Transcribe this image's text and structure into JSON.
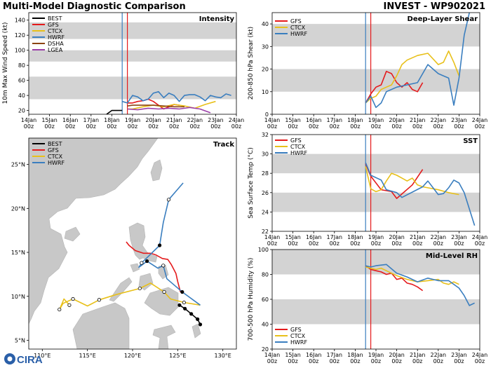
{
  "header": {
    "title_left": "Multi-Model Diagnostic Comparison",
    "title_right": "INVEST - WP902021",
    "logo_text": "CIRA"
  },
  "colors": {
    "BEST": "#000000",
    "GFS": "#e41a1c",
    "CTCX": "#e8c01a",
    "HWRF": "#3a7ebf",
    "DSHA": "#8b4513",
    "LGEA": "#9b3fa8",
    "band": "#d3d3d3",
    "land": "#c8c8c8",
    "init_line_a": "#3a7ebf",
    "init_line_b": "#e41a1c"
  },
  "time_ticks": [
    "14Jan\n00z",
    "15Jan\n00z",
    "16Jan\n00z",
    "17Jan\n00z",
    "18Jan\n00z",
    "19Jan\n00z",
    "20Jan\n00z",
    "21Jan\n00z",
    "22Jan\n00z",
    "23Jan\n00z",
    "24Jan\n00z"
  ],
  "chart_data": [
    {
      "id": "intensity",
      "type": "line",
      "title": "Intensity",
      "ylabel": "10m Max Wind Speed (kt)",
      "xlim": [
        0,
        10
      ],
      "ylim": [
        15,
        150
      ],
      "yticks": [
        20,
        40,
        60,
        80,
        100,
        120,
        140
      ],
      "bands": [
        [
          35,
          65
        ],
        [
          85,
          100
        ],
        [
          115,
          137
        ]
      ],
      "init_lines": [
        4.5,
        4.75
      ],
      "legend": [
        "BEST",
        "GFS",
        "CTCX",
        "HWRF",
        "DSHA",
        "LGEA"
      ],
      "series": [
        {
          "name": "BEST",
          "x": [
            3.75,
            4.0,
            4.25,
            4.5
          ],
          "y": [
            15,
            20,
            20,
            20
          ]
        },
        {
          "name": "GFS",
          "x": [
            4.75,
            5.0,
            5.25,
            5.5,
            5.75,
            6.0,
            6.25,
            6.5,
            6.75,
            7.0,
            7.25
          ],
          "y": [
            30,
            30,
            32,
            33,
            35,
            32,
            27,
            22,
            25,
            28,
            27
          ]
        },
        {
          "name": "CTCX",
          "x": [
            4.75,
            5.0,
            5.5,
            6.0,
            6.5,
            7.0,
            7.5,
            8.0,
            8.5,
            9.0
          ],
          "y": [
            22,
            22,
            25,
            27,
            25,
            28,
            26,
            23,
            28,
            32
          ]
        },
        {
          "name": "HWRF",
          "x": [
            4.5,
            4.75,
            5.0,
            5.25,
            5.5,
            5.75,
            6.0,
            6.25,
            6.5,
            6.75,
            7.0,
            7.25,
            7.5,
            7.75,
            8.0,
            8.25,
            8.5,
            8.75,
            9.0,
            9.25,
            9.5,
            9.75
          ],
          "y": [
            32,
            30,
            40,
            38,
            33,
            35,
            43,
            45,
            37,
            43,
            40,
            32,
            40,
            41,
            41,
            38,
            33,
            40,
            38,
            37,
            42,
            40
          ]
        },
        {
          "name": "DSHA",
          "x": [
            4.75,
            5.0,
            5.5,
            6.0,
            6.5,
            7.0,
            7.5
          ],
          "y": [
            26,
            27,
            27,
            27,
            26,
            25,
            25
          ]
        },
        {
          "name": "LGEA",
          "x": [
            4.75,
            5.25,
            5.75,
            6.25,
            6.75,
            7.25,
            7.75,
            8.25,
            8.75
          ],
          "y": [
            22,
            21,
            23,
            22,
            23,
            22,
            24,
            22,
            17
          ]
        }
      ]
    },
    {
      "id": "shear",
      "type": "line",
      "title": "Deep-Layer Shear",
      "ylabel": "200-850 hPa Shear (kt)",
      "xlim": [
        0,
        10
      ],
      "ylim": [
        0,
        45
      ],
      "yticks": [
        0,
        10,
        20,
        30,
        40
      ],
      "bands": [
        [
          10,
          20
        ],
        [
          30,
          40
        ]
      ],
      "init_lines": [
        4.5,
        4.75
      ],
      "legend": [
        "GFS",
        "CTCX",
        "HWRF"
      ],
      "series": [
        {
          "name": "GFS",
          "x": [
            4.5,
            4.75,
            5.0,
            5.25,
            5.5,
            5.75,
            6.0,
            6.25,
            6.5,
            6.75,
            7.0,
            7.25
          ],
          "y": [
            5,
            9,
            12,
            13,
            19,
            18,
            14,
            12,
            14,
            11,
            10,
            14
          ]
        },
        {
          "name": "CTCX",
          "x": [
            4.5,
            4.75,
            5.0,
            5.25,
            5.5,
            5.75,
            6.0,
            6.25,
            6.5,
            7.0,
            7.5,
            8.0,
            8.25,
            8.5,
            8.75,
            9.0
          ],
          "y": [
            5,
            7,
            8,
            11,
            12,
            13,
            17,
            22,
            24,
            26,
            27,
            22,
            23,
            28,
            23,
            17
          ]
        },
        {
          "name": "HWRF",
          "x": [
            4.5,
            4.75,
            5.0,
            5.25,
            5.5,
            6.0,
            6.5,
            7.0,
            7.5,
            8.0,
            8.5,
            8.75,
            9.0,
            9.25,
            9.5
          ],
          "y": [
            5,
            8,
            3,
            5,
            10,
            12,
            13,
            14,
            22,
            18,
            16,
            4,
            16,
            35,
            45
          ]
        }
      ]
    },
    {
      "id": "sst",
      "type": "line",
      "title": "SST",
      "ylabel": "Sea Surface Temp (°C)",
      "xlim": [
        0,
        10
      ],
      "ylim": [
        22,
        32
      ],
      "yticks": [
        22,
        24,
        26,
        28,
        30,
        32
      ],
      "bands": [
        [
          24,
          26
        ],
        [
          28,
          30
        ]
      ],
      "init_lines": [
        4.5,
        4.75
      ],
      "legend": [
        "GFS",
        "CTCX",
        "HWRF"
      ],
      "series": [
        {
          "name": "GFS",
          "x": [
            4.5,
            4.75,
            5.25,
            5.5,
            5.75,
            6.0,
            6.75,
            7.0,
            7.25
          ],
          "y": [
            29,
            27.7,
            26.3,
            26.2,
            26.1,
            25.4,
            26.8,
            27.6,
            28.4
          ]
        },
        {
          "name": "CTCX",
          "x": [
            4.5,
            4.75,
            5.0,
            5.25,
            5.5,
            5.75,
            6.0,
            6.25,
            6.5,
            6.75,
            7.0,
            7.25,
            7.5,
            8.0,
            8.5,
            9.0
          ],
          "y": [
            28.7,
            26.4,
            26.1,
            26.3,
            27.2,
            28.0,
            27.8,
            27.5,
            27.2,
            27.5,
            26.8,
            26.6,
            26.5,
            26.3,
            26.0,
            25.8
          ]
        },
        {
          "name": "HWRF",
          "x": [
            4.5,
            4.75,
            5.25,
            5.5,
            6.0,
            6.25,
            7.25,
            7.5,
            7.75,
            8.0,
            8.25,
            8.5,
            8.75,
            9.0,
            9.25,
            9.5,
            9.75
          ],
          "y": [
            29.1,
            27.8,
            27.3,
            26.3,
            26.0,
            25.5,
            26.6,
            27.2,
            26.5,
            25.8,
            25.9,
            26.5,
            27.3,
            27.0,
            26.0,
            24.3,
            22.6
          ]
        }
      ]
    },
    {
      "id": "rh",
      "type": "line",
      "title": "Mid-Level RH",
      "ylabel": "700-500 hPa Humidity (%)",
      "xlim": [
        0,
        10
      ],
      "ylim": [
        20,
        100
      ],
      "yticks": [
        20,
        40,
        60,
        80,
        100
      ],
      "bands": [
        [
          40,
          60
        ],
        [
          80,
          100
        ]
      ],
      "init_lines": [
        4.5,
        4.75
      ],
      "legend": [
        "GFS",
        "CTCX",
        "HWRF"
      ],
      "series": [
        {
          "name": "GFS",
          "x": [
            4.5,
            4.75,
            5.0,
            5.25,
            5.5,
            5.75,
            6.0,
            6.25,
            6.5,
            6.75,
            7.0,
            7.25
          ],
          "y": [
            87,
            84,
            83,
            82,
            80,
            81,
            76,
            77,
            73,
            72,
            70,
            67
          ]
        },
        {
          "name": "CTCX",
          "x": [
            4.5,
            4.75,
            5.0,
            5.25,
            5.5,
            6.0,
            6.5,
            7.0,
            7.5,
            8.0,
            8.25,
            8.5,
            8.75,
            9.0
          ],
          "y": [
            86,
            85,
            84,
            85,
            83,
            79,
            76,
            74,
            75,
            76,
            73,
            72,
            74,
            72
          ]
        },
        {
          "name": "HWRF",
          "x": [
            4.5,
            4.75,
            5.0,
            5.5,
            6.0,
            6.5,
            7.0,
            7.5,
            8.0,
            8.5,
            9.0,
            9.25,
            9.5,
            9.75
          ],
          "y": [
            87,
            86,
            87,
            88,
            81,
            78,
            74,
            77,
            75,
            75,
            69,
            63,
            55,
            57
          ]
        }
      ]
    },
    {
      "id": "track",
      "type": "scatter",
      "title": "Track",
      "xlim": [
        108.5,
        131.5
      ],
      "ylim": [
        4,
        28
      ],
      "xticks": [
        110,
        115,
        120,
        125,
        130
      ],
      "xtick_labels": [
        "110°E",
        "115°E",
        "120°E",
        "125°E",
        "130°E"
      ],
      "yticks": [
        5,
        10,
        15,
        20,
        25
      ],
      "ytick_labels": [
        "5°N",
        "10°N",
        "15°N",
        "20°N",
        "25°N"
      ],
      "legend": [
        "BEST",
        "GFS",
        "CTCX",
        "HWRF"
      ],
      "series": [
        {
          "name": "BEST",
          "lon": [
            127.5,
            127.2,
            126.5,
            125.8,
            125.2
          ],
          "lat": [
            6.8,
            7.4,
            8.0,
            8.6,
            9.0
          ],
          "markers": "filled"
        },
        {
          "name": "GFS",
          "lon": [
            125.3,
            125.0,
            124.8,
            124.3,
            123.9,
            123.3,
            122.6,
            122.0,
            121.2,
            120.3,
            119.6,
            119.3
          ],
          "lat": [
            10.5,
            11.7,
            12.6,
            13.6,
            14.2,
            14.3,
            14.7,
            14.9,
            14.9,
            15.2,
            15.8,
            16.2
          ],
          "markers": "none"
        },
        {
          "name": "CTCX",
          "lon": [
            127.5,
            125.7,
            124.2,
            123.5,
            122.0,
            120.8,
            118.2,
            116.3,
            115.0,
            113.4,
            112.3,
            111.9,
            112.4,
            113.0
          ],
          "lat": [
            9.0,
            9.3,
            9.7,
            10.5,
            11.5,
            10.9,
            10.2,
            9.6,
            8.9,
            9.7,
            9.2,
            8.5,
            9.7,
            9.0
          ],
          "markers": "open"
        },
        {
          "name": "HWRF",
          "lon": [
            127.5,
            125.5,
            123.8,
            123.4,
            122.8,
            121.6,
            120.7,
            121.0,
            121.8,
            123.0,
            123.4,
            124.0,
            125.6
          ],
          "lat": [
            9.0,
            10.5,
            12.0,
            13.5,
            13.2,
            14.0,
            13.3,
            13.8,
            14.6,
            15.8,
            18.4,
            21.0,
            22.9
          ],
          "markers": "mixed"
        }
      ]
    }
  ]
}
